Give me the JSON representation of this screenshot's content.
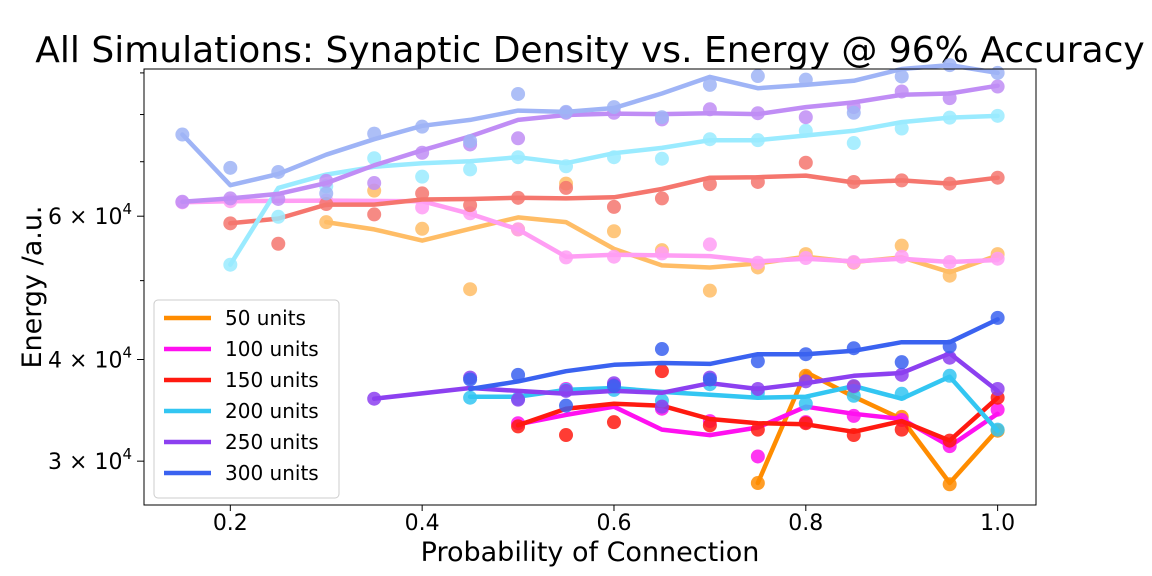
{
  "chart_data": {
    "type": "line",
    "title": "All Simulations: Synaptic Density vs. Energy @ 96% Accuracy",
    "xlabel": "Probability of Connection",
    "ylabel": "Energy /a.u.",
    "x_scale": "linear",
    "y_scale": "log",
    "xlim": [
      0.11,
      1.04
    ],
    "ylim": [
      26500,
      91000
    ],
    "x_ticks": [
      {
        "value": 0.2,
        "label": "0.2"
      },
      {
        "value": 0.4,
        "label": "0.4"
      },
      {
        "value": 0.6,
        "label": "0.6"
      },
      {
        "value": 0.8,
        "label": "0.8"
      },
      {
        "value": 1.0,
        "label": "1.0"
      }
    ],
    "y_ticks": [
      {
        "value": 30000,
        "mantissa": "3",
        "base": "10",
        "exp": "4"
      },
      {
        "value": 40000,
        "mantissa": "4",
        "base": "10",
        "exp": "4"
      },
      {
        "value": 60000,
        "mantissa": "6",
        "base": "10",
        "exp": "4"
      }
    ],
    "y_minor_ticks": [
      50000,
      70000,
      80000,
      90000
    ],
    "legend_position": "lower-left",
    "grid": false,
    "series": [
      {
        "name": "50 units",
        "color": "#ff8c00",
        "in_legend": true,
        "x": [
          0.75,
          0.8,
          0.85,
          0.9,
          0.95,
          1.0
        ],
        "line": [
          28200,
          38600,
          36000,
          33800,
          28200,
          32800
        ],
        "points": [
          28200,
          38200,
          37000,
          34000,
          28100,
          32700
        ]
      },
      {
        "name": "100 units",
        "color": "#ff10f0",
        "in_legend": true,
        "x": [
          0.5,
          0.55,
          0.6,
          0.65,
          0.7,
          0.75,
          0.8,
          0.85,
          0.9,
          0.95,
          1.0
        ],
        "line": [
          33300,
          34200,
          35000,
          32800,
          32300,
          33000,
          35000,
          34300,
          33800,
          31300,
          34300
        ],
        "points": [
          33400,
          36800,
          37200,
          34800,
          33600,
          30400,
          33500,
          34100,
          33700,
          31300,
          34700
        ]
      },
      {
        "name": "150 units",
        "color": "#ff1a10",
        "in_legend": true,
        "x": [
          0.5,
          0.55,
          0.6,
          0.65,
          0.7,
          0.75,
          0.8,
          0.85,
          0.9,
          0.95,
          1.0
        ],
        "line": [
          33200,
          34800,
          35300,
          35100,
          33800,
          33400,
          33300,
          32600,
          33600,
          31800,
          35900
        ],
        "points": [
          33100,
          32300,
          33500,
          38700,
          33200,
          32800,
          33400,
          32300,
          32800,
          31800,
          35900
        ]
      },
      {
        "name": "200 units",
        "color": "#33c6f2",
        "in_legend": true,
        "x": [
          0.45,
          0.5,
          0.55,
          0.6,
          0.65,
          0.7,
          0.75,
          0.8,
          0.85,
          0.9,
          0.95,
          1.0
        ],
        "line": [
          36000,
          36000,
          36700,
          36900,
          36500,
          36200,
          35900,
          36000,
          37100,
          35800,
          38100,
          32700
        ],
        "points": [
          35900,
          35800,
          36700,
          36700,
          35600,
          37300,
          36400,
          35300,
          36100,
          36300,
          38200,
          32800
        ]
      },
      {
        "name": "250 units",
        "color": "#8c40f0",
        "in_legend": true,
        "x": [
          0.35,
          0.45,
          0.5,
          0.55,
          0.6,
          0.65,
          0.7,
          0.75,
          0.8,
          0.85,
          0.9,
          0.95,
          1.0
        ],
        "line": [
          35800,
          36900,
          36600,
          36300,
          36600,
          36400,
          37400,
          36800,
          37400,
          38200,
          38500,
          40700,
          36600
        ],
        "points": [
          35800,
          38000,
          35700,
          36600,
          37400,
          35000,
          38000,
          36800,
          37600,
          37100,
          38300,
          40200,
          36800
        ]
      },
      {
        "name": "300 units",
        "color": "#3a62f0",
        "in_legend": true,
        "x": [
          0.45,
          0.5,
          0.55,
          0.6,
          0.65,
          0.7,
          0.75,
          0.8,
          0.85,
          0.9,
          0.95,
          1.0
        ],
        "line": [
          36800,
          37600,
          38700,
          39400,
          39600,
          39500,
          40600,
          40600,
          41000,
          42000,
          42000,
          44800
        ],
        "points": [
          37800,
          38300,
          35100,
          37100,
          41200,
          37800,
          39800,
          40600,
          41300,
          39700,
          41500,
          45000
        ]
      },
      {
        "name": "",
        "color": "#ffbd66",
        "in_legend": false,
        "x": [
          0.3,
          0.35,
          0.4,
          0.45,
          0.5,
          0.55,
          0.6,
          0.65,
          0.7,
          0.75,
          0.8,
          0.85,
          0.9,
          0.95,
          1.0
        ],
        "line": [
          59000,
          57800,
          56000,
          57900,
          59800,
          59000,
          54700,
          52200,
          51900,
          52500,
          53500,
          52700,
          53400,
          51200,
          53700
        ],
        "points": [
          59000,
          64500,
          57900,
          48800,
          57800,
          65800,
          57500,
          54500,
          48600,
          51900,
          53900,
          52600,
          55200,
          50700,
          53900
        ]
      },
      {
        "name": "",
        "color": "#ff9ef4",
        "in_legend": false,
        "x": [
          0.15,
          0.2,
          0.3,
          0.4,
          0.45,
          0.5,
          0.55,
          0.6,
          0.65,
          0.7,
          0.75,
          0.8,
          0.85,
          0.9,
          0.95,
          1.0
        ],
        "line": [
          62400,
          62600,
          62700,
          62600,
          60400,
          57800,
          53500,
          53800,
          53700,
          53600,
          52800,
          53200,
          52800,
          53200,
          52700,
          53000
        ],
        "points": [
          62400,
          62600,
          62700,
          61500,
          60500,
          57800,
          53400,
          53500,
          54000,
          55400,
          52600,
          53300,
          52700,
          53500,
          52700,
          53200
        ]
      },
      {
        "name": "",
        "color": "#f5766e",
        "in_legend": false,
        "x": [
          0.2,
          0.25,
          0.3,
          0.35,
          0.4,
          0.45,
          0.5,
          0.55,
          0.6,
          0.65,
          0.7,
          0.75,
          0.8,
          0.85,
          0.9,
          0.95,
          1.0
        ],
        "line": [
          58800,
          59600,
          62000,
          62000,
          62900,
          63000,
          63200,
          63100,
          63300,
          64800,
          66900,
          67000,
          67300,
          66000,
          66400,
          65800,
          66900
        ],
        "points": [
          58800,
          55500,
          62100,
          60300,
          64000,
          61900,
          63200,
          65000,
          61600,
          63100,
          65700,
          66100,
          69800,
          66100,
          66400,
          65800,
          66900
        ]
      },
      {
        "name": "",
        "color": "#9aebff",
        "in_legend": false,
        "x": [
          0.2,
          0.25,
          0.3,
          0.35,
          0.4,
          0.45,
          0.5,
          0.55,
          0.6,
          0.65,
          0.7,
          0.75,
          0.8,
          0.85,
          0.9,
          0.95,
          1.0
        ],
        "line": [
          52300,
          65000,
          67500,
          69000,
          69700,
          70100,
          70900,
          69700,
          71700,
          72800,
          74400,
          74400,
          75400,
          76400,
          78300,
          79300,
          79700
        ],
        "points": [
          52300,
          59900,
          65300,
          70700,
          67100,
          68500,
          70900,
          69100,
          70900,
          70600,
          74600,
          74400,
          76400,
          73800,
          76900,
          79300,
          79700
        ]
      },
      {
        "name": "",
        "color": "#c08df5",
        "in_legend": false,
        "x": [
          0.15,
          0.2,
          0.25,
          0.3,
          0.35,
          0.4,
          0.45,
          0.5,
          0.55,
          0.6,
          0.65,
          0.7,
          0.75,
          0.8,
          0.85,
          0.9,
          0.95,
          1.0
        ],
        "line": [
          62500,
          63100,
          63900,
          65900,
          69300,
          72300,
          75200,
          78800,
          79900,
          80200,
          80100,
          80300,
          80100,
          81700,
          82800,
          84600,
          84900,
          86800
        ],
        "points": [
          62500,
          63100,
          63000,
          66300,
          65900,
          71800,
          73500,
          74800,
          80400,
          80400,
          78900,
          81200,
          80300,
          79400,
          81700,
          85400,
          83800,
          86600
        ]
      },
      {
        "name": "",
        "color": "#9fb4f6",
        "in_legend": false,
        "x": [
          0.15,
          0.2,
          0.25,
          0.3,
          0.35,
          0.4,
          0.45,
          0.5,
          0.55,
          0.6,
          0.65,
          0.7,
          0.75,
          0.8,
          0.85,
          0.9,
          0.95,
          1.0
        ],
        "line": [
          75600,
          65500,
          67600,
          71400,
          74600,
          77500,
          78800,
          80900,
          80600,
          81500,
          84900,
          89000,
          86200,
          87000,
          88000,
          91000,
          92000,
          90000
        ],
        "points": [
          75600,
          68800,
          68000,
          64000,
          75800,
          77300,
          74200,
          84800,
          80600,
          81700,
          79400,
          87000,
          89200,
          88300,
          80400,
          89100,
          92000,
          90000
        ]
      }
    ]
  }
}
